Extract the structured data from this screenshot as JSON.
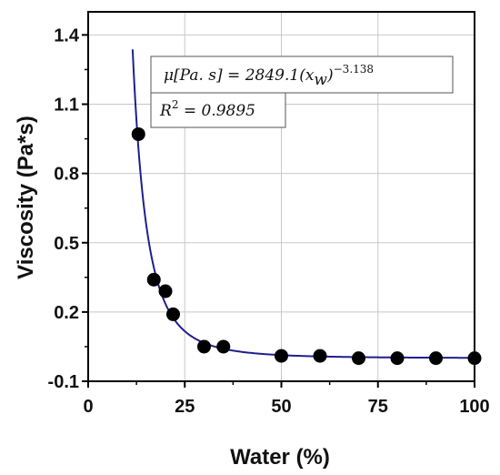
{
  "chart_data": {
    "type": "scatter",
    "xlabel": "Water (%)",
    "ylabel": "Viscosity (Pa*s)",
    "xlim": [
      0,
      100
    ],
    "ylim": [
      -0.1,
      1.5
    ],
    "xticks": [
      0,
      25,
      50,
      75,
      100
    ],
    "yticks": [
      -0.1,
      0.2,
      0.5,
      0.8,
      1.1,
      1.4
    ],
    "xtick_labels": [
      "0",
      "25",
      "50",
      "75",
      "100"
    ],
    "ytick_labels": [
      "-0.1",
      "0.2",
      "0.5",
      "0.8",
      "1.1",
      "1.4"
    ],
    "grid": true,
    "points": {
      "x": [
        13,
        17,
        20,
        22,
        30,
        35,
        50,
        60,
        70,
        80,
        90,
        100
      ],
      "y": [
        0.97,
        0.34,
        0.29,
        0.19,
        0.05,
        0.05,
        0.01,
        0.01,
        0.0,
        0.0,
        0.0,
        0.0
      ]
    },
    "fit": {
      "equation_lhs": "μ[Pa. s] = 2849.1(x",
      "equation_sub": "w",
      "equation_rhs": ")",
      "equation_exp": "−3.138",
      "r2_lhs": "R",
      "r2_exp": "2",
      "r2_rhs": " = 0.9895",
      "coefficient": 2849.1,
      "exponent": -3.138,
      "offset": 0.0
    },
    "colors": {
      "points": "#000000",
      "fit_line": "#1f1f8f",
      "grid": "#c8c8c8",
      "axes": "#000000"
    }
  }
}
